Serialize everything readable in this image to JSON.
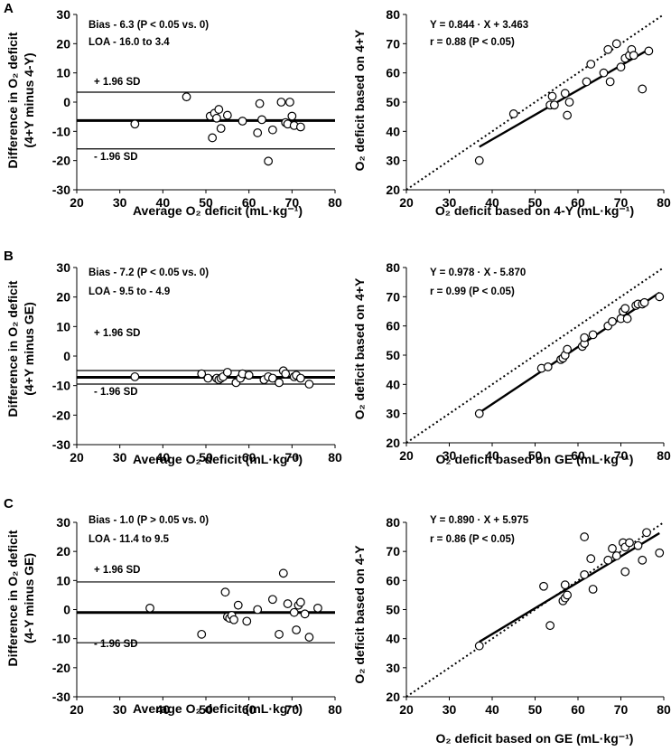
{
  "chart_data": [
    {
      "panel": "A",
      "type": "scatter",
      "subtype": "bland-altman",
      "ylabel_line1": "Difference in O₂ deficit",
      "ylabel_line2": "(4+Y minus 4-Y)",
      "xlabel": "Average O₂ deficit (mL·kg⁻¹)",
      "xlim": [
        20,
        80
      ],
      "ylim": [
        -30,
        30
      ],
      "xticks": [
        20,
        30,
        40,
        50,
        60,
        70,
        80
      ],
      "yticks": [
        -30,
        -20,
        -10,
        0,
        10,
        20,
        30
      ],
      "bias_text": "Bias - 6.3 (P < 0.05 vs. 0)",
      "loa_text": "LOA - 16.0 to 3.4",
      "upper_label": "+ 1.96 SD",
      "lower_label": "- 1.96 SD",
      "bias": -6.3,
      "upper": 3.4,
      "lower": -16.0,
      "points": [
        [
          33.5,
          -7.5
        ],
        [
          45.5,
          1.8
        ],
        [
          51,
          -4.8
        ],
        [
          51.5,
          -12.2
        ],
        [
          52,
          -3.8
        ],
        [
          52.5,
          -5.5
        ],
        [
          53,
          -2.5
        ],
        [
          53.5,
          -9
        ],
        [
          55,
          -4.5
        ],
        [
          58.5,
          -6.5
        ],
        [
          62,
          -10.5
        ],
        [
          62.5,
          -0.5
        ],
        [
          63,
          -6
        ],
        [
          64.5,
          -20.2
        ],
        [
          65.5,
          -9.5
        ],
        [
          67.5,
          0
        ],
        [
          68.5,
          -7
        ],
        [
          69,
          -7.5
        ],
        [
          69.5,
          0
        ],
        [
          70,
          -4.8
        ],
        [
          70.5,
          -8
        ],
        [
          72,
          -8.5
        ]
      ]
    },
    {
      "panel": "A",
      "type": "scatter",
      "subtype": "regression",
      "ylabel": "O₂ deficit based on 4+Y",
      "xlabel": "O₂ deficit based on 4-Y (mL·kg⁻¹)",
      "xlim": [
        20,
        80
      ],
      "ylim": [
        20,
        80
      ],
      "xticks": [
        20,
        30,
        40,
        50,
        60,
        70,
        80
      ],
      "yticks": [
        20,
        30,
        40,
        50,
        60,
        70,
        80
      ],
      "equation_text": "Y = 0.844 · X + 3.463",
      "r_text": "r = 0.88 (P < 0.05)",
      "slope": 0.844,
      "intercept": 3.463,
      "fit_range": [
        37,
        77
      ],
      "points": [
        [
          37,
          30
        ],
        [
          45,
          46
        ],
        [
          53.5,
          49
        ],
        [
          54,
          52
        ],
        [
          54.5,
          49
        ],
        [
          57,
          53
        ],
        [
          57.5,
          45.5
        ],
        [
          58,
          50
        ],
        [
          62,
          57
        ],
        [
          63,
          63
        ],
        [
          66,
          60
        ],
        [
          67,
          68
        ],
        [
          67.5,
          57
        ],
        [
          69,
          70
        ],
        [
          70,
          62
        ],
        [
          71,
          65
        ],
        [
          72,
          66
        ],
        [
          72.5,
          68
        ],
        [
          73,
          66
        ],
        [
          75,
          54.5
        ],
        [
          76.5,
          67.5
        ]
      ]
    },
    {
      "panel": "B",
      "type": "scatter",
      "subtype": "bland-altman",
      "ylabel_line1": "Difference in O₂ deficit",
      "ylabel_line2": "(4+Y minus GE)",
      "xlabel": "Average O₂ deficit (mL·kg⁻¹)",
      "xlim": [
        20,
        80
      ],
      "ylim": [
        -30,
        30
      ],
      "xticks": [
        20,
        30,
        40,
        50,
        60,
        70,
        80
      ],
      "yticks": [
        -30,
        -20,
        -10,
        0,
        10,
        20,
        30
      ],
      "bias_text": "Bias - 7.2 (P < 0.05 vs. 0)",
      "loa_text": "LOA - 9.5 to - 4.9",
      "upper_label": "+ 1.96 SD",
      "lower_label": "- 1.96 SD",
      "bias": -7.2,
      "upper": -4.9,
      "lower": -9.5,
      "points": [
        [
          33.5,
          -7
        ],
        [
          49,
          -6
        ],
        [
          50.5,
          -7.5
        ],
        [
          52.5,
          -7.5
        ],
        [
          53,
          -8
        ],
        [
          53.5,
          -7.5
        ],
        [
          54,
          -7
        ],
        [
          55,
          -5.5
        ],
        [
          57,
          -9
        ],
        [
          58,
          -7.5
        ],
        [
          58.5,
          -6
        ],
        [
          60,
          -6.5
        ],
        [
          63.5,
          -8
        ],
        [
          64.5,
          -7
        ],
        [
          65.5,
          -7.5
        ],
        [
          67,
          -9
        ],
        [
          68,
          -5
        ],
        [
          68.5,
          -6
        ],
        [
          70.5,
          -7
        ],
        [
          71,
          -6.5
        ],
        [
          72,
          -7.5
        ],
        [
          74,
          -9.5
        ]
      ]
    },
    {
      "panel": "B",
      "type": "scatter",
      "subtype": "regression",
      "ylabel": "O₂ deficit based on 4+Y",
      "xlabel": "O₂ deficit based on GE (mL·kg⁻¹)",
      "xlim": [
        20,
        80
      ],
      "ylim": [
        20,
        80
      ],
      "xticks": [
        20,
        30,
        40,
        50,
        60,
        70,
        80
      ],
      "yticks": [
        20,
        30,
        40,
        50,
        60,
        70,
        80
      ],
      "equation_text": "Y = 0.978 · X - 5.870",
      "r_text": "r = 0.99 (P < 0.05)",
      "slope": 0.978,
      "intercept": -5.87,
      "fit_range": [
        37,
        79
      ],
      "points": [
        [
          37,
          30
        ],
        [
          51.5,
          45.5
        ],
        [
          53,
          46
        ],
        [
          56,
          48.5
        ],
        [
          56.5,
          49
        ],
        [
          57,
          50
        ],
        [
          57.5,
          52
        ],
        [
          61,
          53
        ],
        [
          61.5,
          54
        ],
        [
          61.5,
          56
        ],
        [
          63.5,
          57
        ],
        [
          67,
          60
        ],
        [
          68,
          61.5
        ],
        [
          70,
          62.5
        ],
        [
          70.5,
          65
        ],
        [
          71,
          66
        ],
        [
          71.5,
          62.5
        ],
        [
          73.5,
          67
        ],
        [
          74,
          67.5
        ],
        [
          75,
          67.5
        ],
        [
          75.5,
          68
        ],
        [
          79,
          70
        ]
      ]
    },
    {
      "panel": "C",
      "type": "scatter",
      "subtype": "bland-altman",
      "ylabel_line1": "Difference in O₂ deficit",
      "ylabel_line2": "(4-Y minus GE)",
      "xlabel": "Average O₂ deficit (mL·kg⁻¹)",
      "xlim": [
        20,
        80
      ],
      "ylim": [
        -30,
        30
      ],
      "xticks": [
        20,
        30,
        40,
        50,
        60,
        70,
        80
      ],
      "yticks": [
        -30,
        -20,
        -10,
        0,
        10,
        20,
        30
      ],
      "bias_text": "Bias - 1.0 (P > 0.05 vs. 0)",
      "loa_text": "LOA - 11.4 to 9.5",
      "upper_label": "+ 1.96 SD",
      "lower_label": "- 1.96 SD",
      "bias": -1.0,
      "upper": 9.5,
      "lower": -11.4,
      "points": [
        [
          37,
          0.5
        ],
        [
          49,
          -8.5
        ],
        [
          54.5,
          6
        ],
        [
          55,
          -2.5
        ],
        [
          55.5,
          -3
        ],
        [
          56,
          -2
        ],
        [
          56.5,
          -3.5
        ],
        [
          57.5,
          1.5
        ],
        [
          59.5,
          -4
        ],
        [
          62,
          0
        ],
        [
          65.5,
          3.5
        ],
        [
          67,
          -8.5
        ],
        [
          68,
          12.5
        ],
        [
          69,
          2
        ],
        [
          70.5,
          -1
        ],
        [
          71,
          -7
        ],
        [
          71.5,
          1.5
        ],
        [
          72,
          2.5
        ],
        [
          73,
          -1.5
        ],
        [
          74,
          -9.5
        ],
        [
          76,
          0.5
        ]
      ]
    },
    {
      "panel": "C",
      "type": "scatter",
      "subtype": "regression",
      "ylabel": "O₂ deficit based on 4-Y",
      "xlabel": "O₂ deficit based on GE (mL·kg⁻¹)",
      "xlim": [
        20,
        80
      ],
      "ylim": [
        20,
        80
      ],
      "xticks": [
        20,
        30,
        40,
        50,
        60,
        70,
        80
      ],
      "yticks": [
        20,
        30,
        40,
        50,
        60,
        70,
        80
      ],
      "equation_text": "Y = 0.890 · X + 5.975",
      "r_text": "r = 0.86 (P < 0.05)",
      "slope": 0.89,
      "intercept": 5.975,
      "fit_range": [
        37,
        79
      ],
      "points": [
        [
          37,
          37.5
        ],
        [
          52,
          58
        ],
        [
          53.5,
          44.5
        ],
        [
          56.5,
          53
        ],
        [
          57,
          54
        ],
        [
          57,
          58.5
        ],
        [
          57.5,
          55
        ],
        [
          61.5,
          62
        ],
        [
          61.5,
          75
        ],
        [
          63,
          67.5
        ],
        [
          63.5,
          57
        ],
        [
          67,
          67
        ],
        [
          68,
          71
        ],
        [
          69,
          68.5
        ],
        [
          70.5,
          73
        ],
        [
          71,
          71.5
        ],
        [
          71,
          63
        ],
        [
          72,
          73
        ],
        [
          74,
          72
        ],
        [
          75,
          67
        ],
        [
          76,
          76.5
        ],
        [
          79,
          69.5
        ]
      ]
    }
  ]
}
